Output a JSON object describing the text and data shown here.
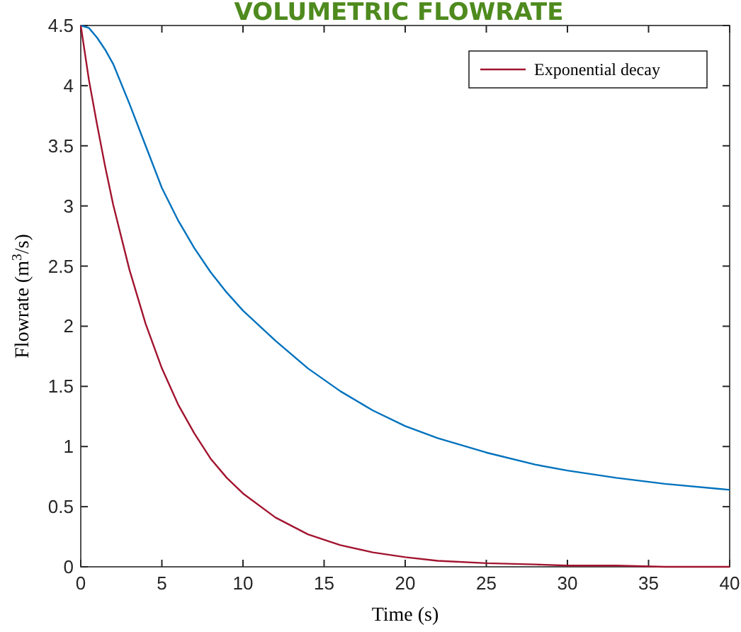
{
  "chart_data": {
    "type": "line",
    "title": "VOLUMETRIC FLOWRATE",
    "xlabel": "Time (s)",
    "ylabel": "Flowrate (m$^{3}$/s)",
    "x": [
      0,
      0.5,
      1,
      1.5,
      2,
      3,
      4,
      5,
      6,
      7,
      8,
      9,
      10,
      12,
      14,
      16,
      18,
      20,
      22,
      25,
      28,
      30,
      33,
      36,
      40
    ],
    "series": [
      {
        "color": "#0072bd",
        "values": [
          4.5,
          4.48,
          4.4,
          4.3,
          4.18,
          3.85,
          3.5,
          3.15,
          2.88,
          2.65,
          2.45,
          2.28,
          2.13,
          1.88,
          1.65,
          1.46,
          1.3,
          1.17,
          1.07,
          0.95,
          0.85,
          0.8,
          0.74,
          0.69,
          0.64
        ]
      },
      {
        "name": "Exponential decay",
        "color": "#a2142f",
        "values": [
          4.5,
          4.05,
          3.68,
          3.33,
          3.01,
          2.47,
          2.02,
          1.65,
          1.35,
          1.11,
          0.9,
          0.74,
          0.61,
          0.41,
          0.27,
          0.18,
          0.12,
          0.08,
          0.05,
          0.03,
          0.02,
          0.01,
          0.01,
          0,
          0
        ]
      }
    ],
    "xlim": [
      0,
      40
    ],
    "ylim": [
      0,
      4.5
    ],
    "xticks": [
      0,
      5,
      10,
      15,
      20,
      25,
      30,
      35,
      40
    ],
    "yticks": [
      0,
      0.5,
      1,
      1.5,
      2,
      2.5,
      3,
      3.5,
      4,
      4.5
    ],
    "legend": "top right",
    "grid": false
  }
}
